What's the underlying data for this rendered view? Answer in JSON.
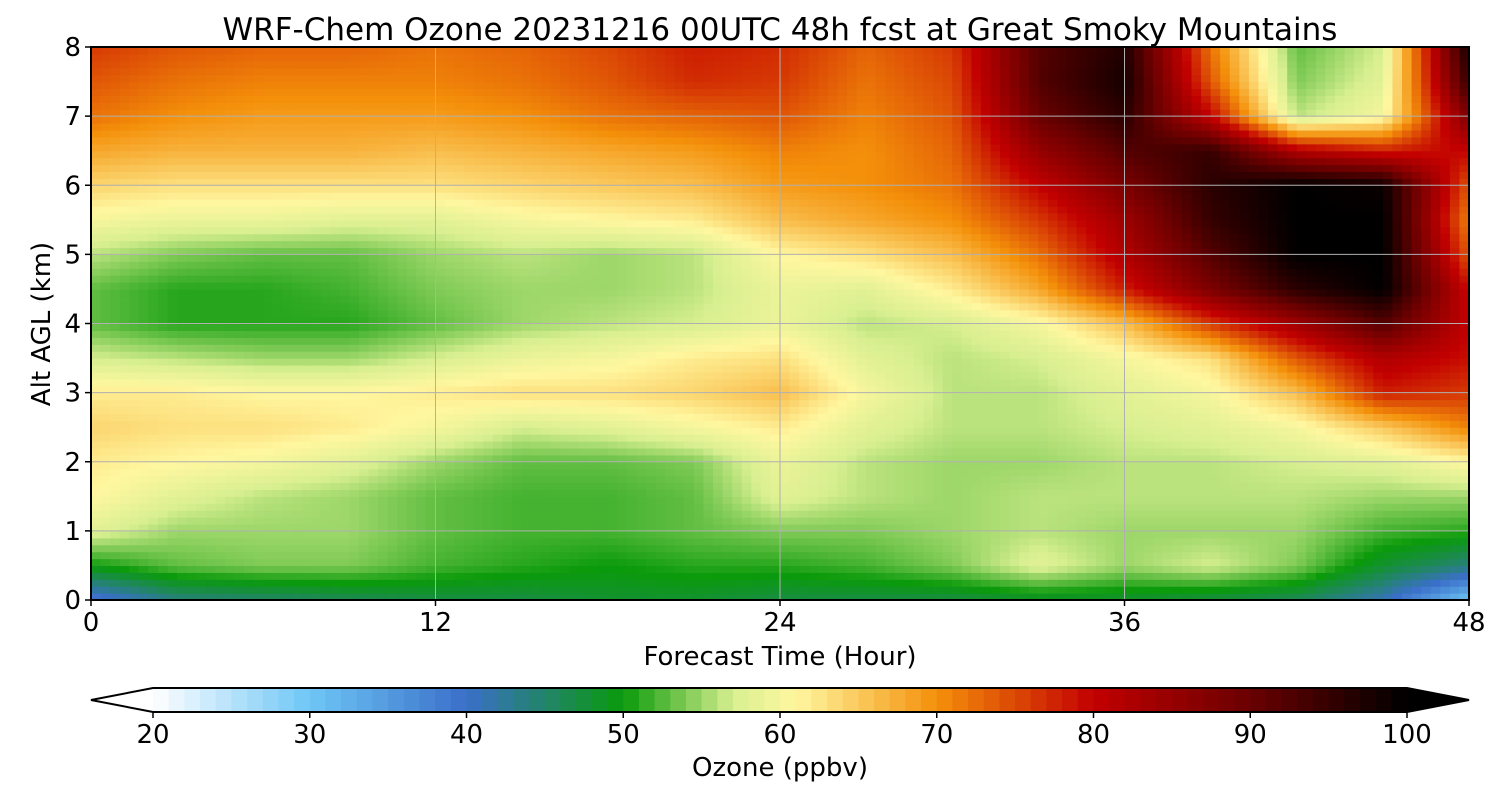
{
  "chart_data": {
    "type": "heatmap",
    "title": "WRF-Chem Ozone  20231216 00UTC 48h fcst at Great Smoky Mountains",
    "xlabel": "Forecast Time (Hour)",
    "ylabel": "Alt AGL (km)",
    "xlim": [
      0,
      48
    ],
    "ylim": [
      0,
      8
    ],
    "x_ticks": [
      "0",
      "12",
      "24",
      "36",
      "48"
    ],
    "y_ticks": [
      "0",
      "1",
      "2",
      "3",
      "4",
      "5",
      "6",
      "7",
      "8"
    ],
    "grid": true,
    "colorbar": {
      "label": "Ozone  (ppbv)",
      "range": [
        20,
        100
      ],
      "ticks": [
        "20",
        "30",
        "40",
        "50",
        "60",
        "70",
        "80",
        "90",
        "100"
      ],
      "extend": "both",
      "colors": {
        "low": "#ffffff",
        "light_blue": "#6ec6f5",
        "blue": "#3a6fc9",
        "dark_green": "#0a9a0a",
        "light_green": "#d8ef90",
        "pale_yellow": "#fff7a0",
        "orange": "#f4900a",
        "red": "#c20000",
        "dark_red": "#6a0000",
        "black": "#000000"
      }
    },
    "x": [
      0,
      3,
      6,
      9,
      12,
      15,
      18,
      21,
      24,
      27,
      30,
      33,
      36,
      39,
      42,
      45,
      48
    ],
    "y": [
      0,
      0.5,
      1,
      1.5,
      2,
      2.5,
      3,
      3.5,
      4,
      4.5,
      5,
      5.5,
      6,
      6.5,
      7,
      7.5,
      8
    ],
    "z": [
      [
        38,
        44,
        45,
        46,
        47,
        47,
        48,
        48,
        47,
        47,
        47,
        48,
        48,
        47,
        46,
        41,
        30
      ],
      [
        50,
        53,
        54,
        54,
        52,
        51,
        50,
        51,
        51,
        52,
        54,
        58,
        55,
        57,
        54,
        48,
        44
      ],
      [
        58,
        55,
        55,
        55,
        53,
        52,
        52,
        53,
        54,
        54,
        55,
        56,
        55,
        55,
        55,
        52,
        51
      ],
      [
        61,
        58,
        56,
        55,
        53,
        52,
        52,
        53,
        58,
        56,
        55,
        56,
        56,
        56,
        56,
        55,
        55
      ],
      [
        62,
        61,
        60,
        58,
        55,
        53,
        53,
        54,
        59,
        56,
        55,
        55,
        56,
        56,
        57,
        58,
        61
      ],
      [
        64,
        63,
        63,
        62,
        60,
        57,
        58,
        60,
        62,
        58,
        56,
        56,
        57,
        58,
        60,
        65,
        71
      ],
      [
        62,
        62,
        61,
        61,
        62,
        63,
        63,
        64,
        66,
        60,
        56,
        56,
        58,
        60,
        66,
        78,
        76
      ],
      [
        57,
        56,
        55,
        55,
        57,
        59,
        60,
        62,
        63,
        58,
        56,
        57,
        60,
        63,
        74,
        82,
        79
      ],
      [
        53,
        51,
        51,
        51,
        53,
        55,
        56,
        57,
        59,
        56,
        57,
        60,
        66,
        76,
        84,
        92,
        80
      ],
      [
        53,
        51,
        51,
        52,
        54,
        55,
        55,
        56,
        59,
        58,
        62,
        68,
        78,
        88,
        96,
        100,
        79
      ],
      [
        56,
        54,
        53,
        53,
        55,
        56,
        55,
        56,
        61,
        63,
        66,
        72,
        82,
        92,
        100,
        100,
        74
      ],
      [
        60,
        59,
        59,
        58,
        58,
        60,
        61,
        62,
        66,
        68,
        70,
        76,
        84,
        95,
        100,
        100,
        71
      ],
      [
        64,
        63,
        63,
        63,
        63,
        64,
        65,
        66,
        69,
        70,
        72,
        80,
        88,
        96,
        100,
        99,
        74
      ],
      [
        68,
        67,
        67,
        67,
        66,
        67,
        68,
        69,
        71,
        70,
        73,
        85,
        92,
        95,
        82,
        78,
        80
      ],
      [
        72,
        70,
        69,
        69,
        69,
        70,
        72,
        73,
        74,
        71,
        74,
        90,
        96,
        80,
        56,
        60,
        88
      ],
      [
        74,
        72,
        71,
        71,
        71,
        72,
        74,
        77,
        76,
        72,
        75,
        92,
        98,
        74,
        54,
        58,
        95
      ],
      [
        76,
        74,
        73,
        73,
        72,
        73,
        75,
        78,
        77,
        73,
        76,
        92,
        97,
        72,
        53,
        57,
        98
      ]
    ]
  }
}
